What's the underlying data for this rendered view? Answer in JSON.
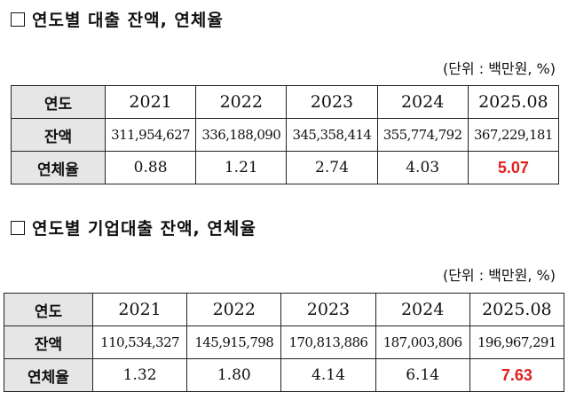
{
  "section1": {
    "title": "연도별 대출 잔액, 연체율",
    "unit": "(단위 : 백만원, %)",
    "table": {
      "header": [
        "연도",
        "2021",
        "2022",
        "2023",
        "2024",
        "2025.08"
      ],
      "rows": [
        [
          "잔액",
          "311,954,627",
          "336,188,090",
          "345,358,414",
          "355,774,792",
          "367,229,181"
        ],
        [
          "연체율",
          "0.88",
          "1.21",
          "2.74",
          "4.03",
          "5.07"
        ]
      ]
    }
  },
  "section2": {
    "title": "연도별 기업대출 잔액, 연체율",
    "unit": "(단위 : 백만원, %)",
    "table": {
      "header": [
        "연도",
        "2021",
        "2022",
        "2023",
        "2024",
        "2025.08"
      ],
      "rows": [
        [
          "잔액",
          "110,534,327",
          "145,915,798",
          "170,813,886",
          "187,003,806",
          "196,967,291"
        ],
        [
          "연체율",
          "1.32",
          "1.80",
          "4.14",
          "6.14",
          "7.63"
        ]
      ]
    }
  },
  "colors": {
    "header_bg": "#e6e6e6",
    "highlight": "#e02020"
  }
}
